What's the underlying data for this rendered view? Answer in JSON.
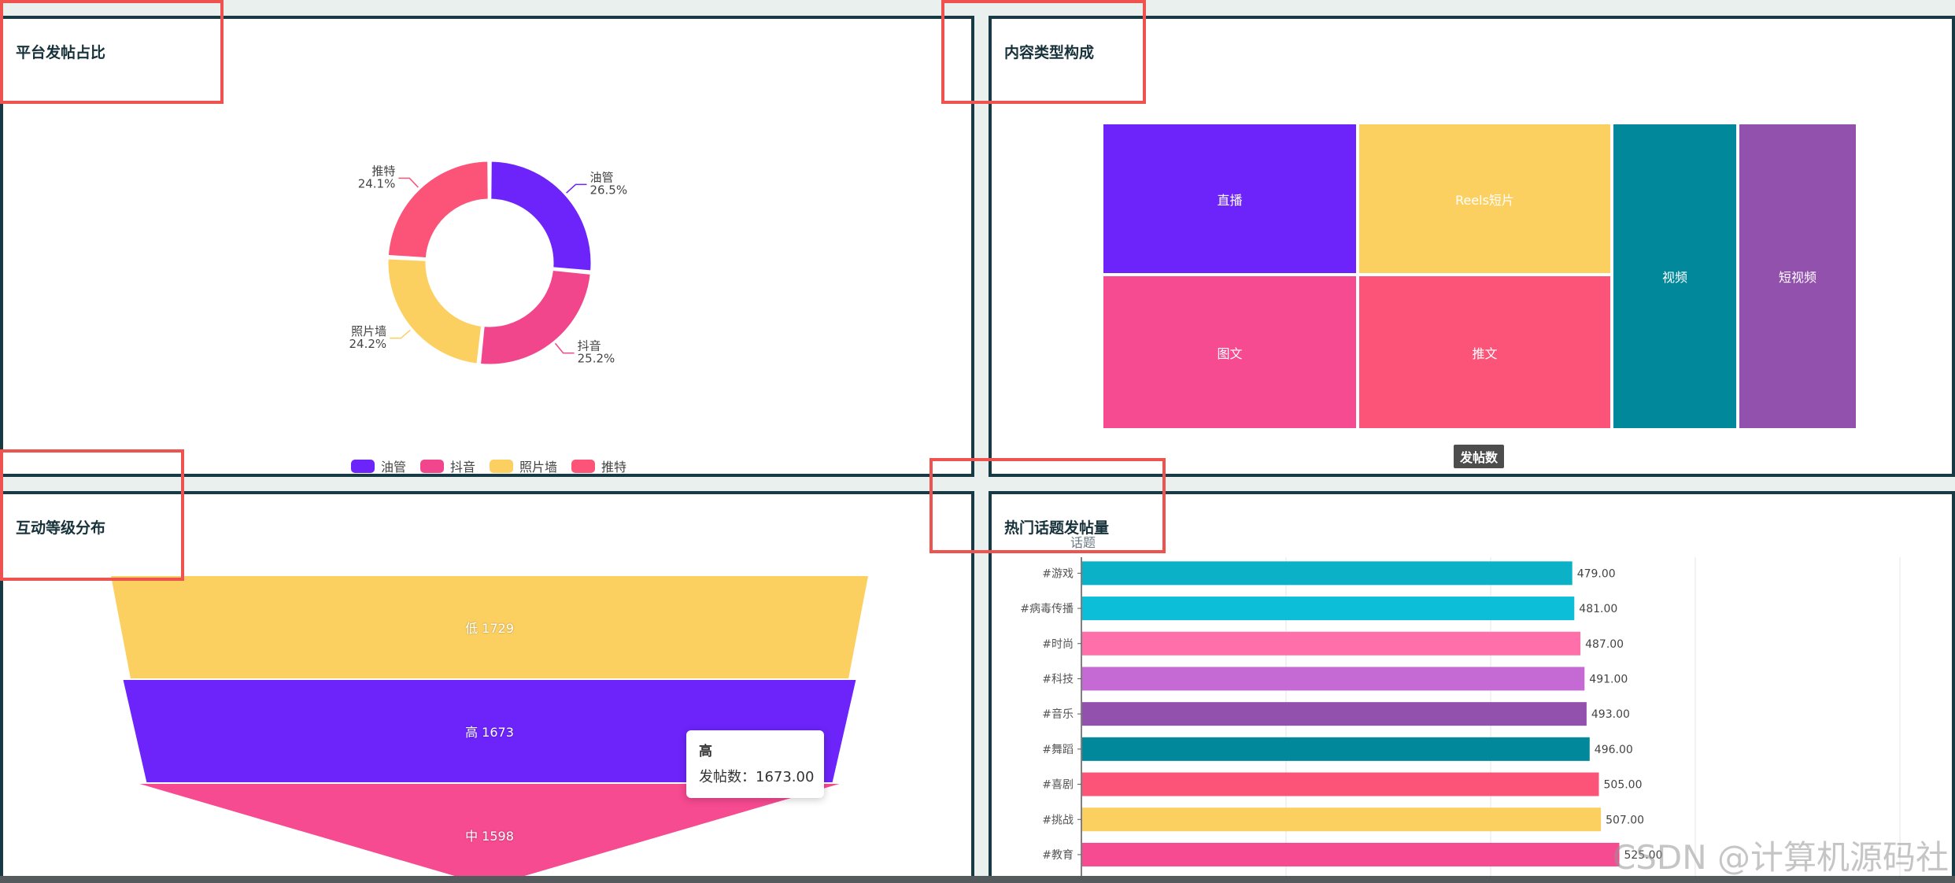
{
  "panels": {
    "pie": {
      "title": "平台发帖占比"
    },
    "treemap": {
      "title": "内容类型构成",
      "visual_label": "发帖数"
    },
    "funnel": {
      "title": "互动等级分布"
    },
    "bar": {
      "title": "热门话题发帖量",
      "subtitle": "话题"
    }
  },
  "tooltip": {
    "title": "高",
    "row": "发帖数：1673.00"
  },
  "watermark": "CSDN @计算机源码社",
  "chart_data": [
    {
      "type": "pie",
      "title": "平台发帖占比",
      "donut": true,
      "legend_position": "bottom",
      "slices": [
        {
          "name": "油管",
          "percent": 26.5,
          "label": "26.5%",
          "color": "#6c24fa"
        },
        {
          "name": "抖音",
          "percent": 25.2,
          "label": "25.2%",
          "color": "#f2468c"
        },
        {
          "name": "照片墙",
          "percent": 24.2,
          "label": "24.2%",
          "color": "#fcd060"
        },
        {
          "name": "推特",
          "percent": 24.1,
          "label": "24.1%",
          "color": "#fc5478"
        }
      ]
    },
    {
      "type": "treemap",
      "title": "内容类型构成",
      "series_label": "发帖数",
      "items": [
        {
          "name": "直播",
          "color": "#6c24fa"
        },
        {
          "name": "Reels短片",
          "color": "#fcd060"
        },
        {
          "name": "视频",
          "color": "#01899b"
        },
        {
          "name": "短视频",
          "color": "#9351ae"
        },
        {
          "name": "图文",
          "color": "#f64a91"
        },
        {
          "name": "推文",
          "color": "#fc5478"
        }
      ]
    },
    {
      "type": "funnel",
      "title": "互动等级分布",
      "stages": [
        {
          "name": "低",
          "value": 1729,
          "label": "低 1729",
          "color": "#fcd060"
        },
        {
          "name": "高",
          "value": 1673,
          "label": "高 1673",
          "color": "#6c24fa"
        },
        {
          "name": "中",
          "value": 1598,
          "label": "中 1598",
          "color": "#f64a91"
        }
      ]
    },
    {
      "type": "bar",
      "orientation": "horizontal",
      "title": "热门话题发帖量",
      "ylabel": "话题",
      "xlim": [
        0,
        800
      ],
      "grid": true,
      "categories": [
        "#游戏",
        "#病毒传播",
        "#时尚",
        "#科技",
        "#音乐",
        "#舞蹈",
        "#喜剧",
        "#挑战",
        "#教育"
      ],
      "values": [
        479.0,
        481.0,
        487.0,
        491.0,
        493.0,
        496.0,
        505.0,
        507.0,
        525.0
      ],
      "value_labels": [
        "479.00",
        "481.00",
        "487.00",
        "491.00",
        "493.00",
        "496.00",
        "505.00",
        "507.00",
        "525.00"
      ],
      "colors": [
        "#0ab1c7",
        "#0cbed7",
        "#ff6faa",
        "#c56ad4",
        "#9351ae",
        "#01899b",
        "#fc5478",
        "#fcd060",
        "#f64a91"
      ]
    }
  ]
}
